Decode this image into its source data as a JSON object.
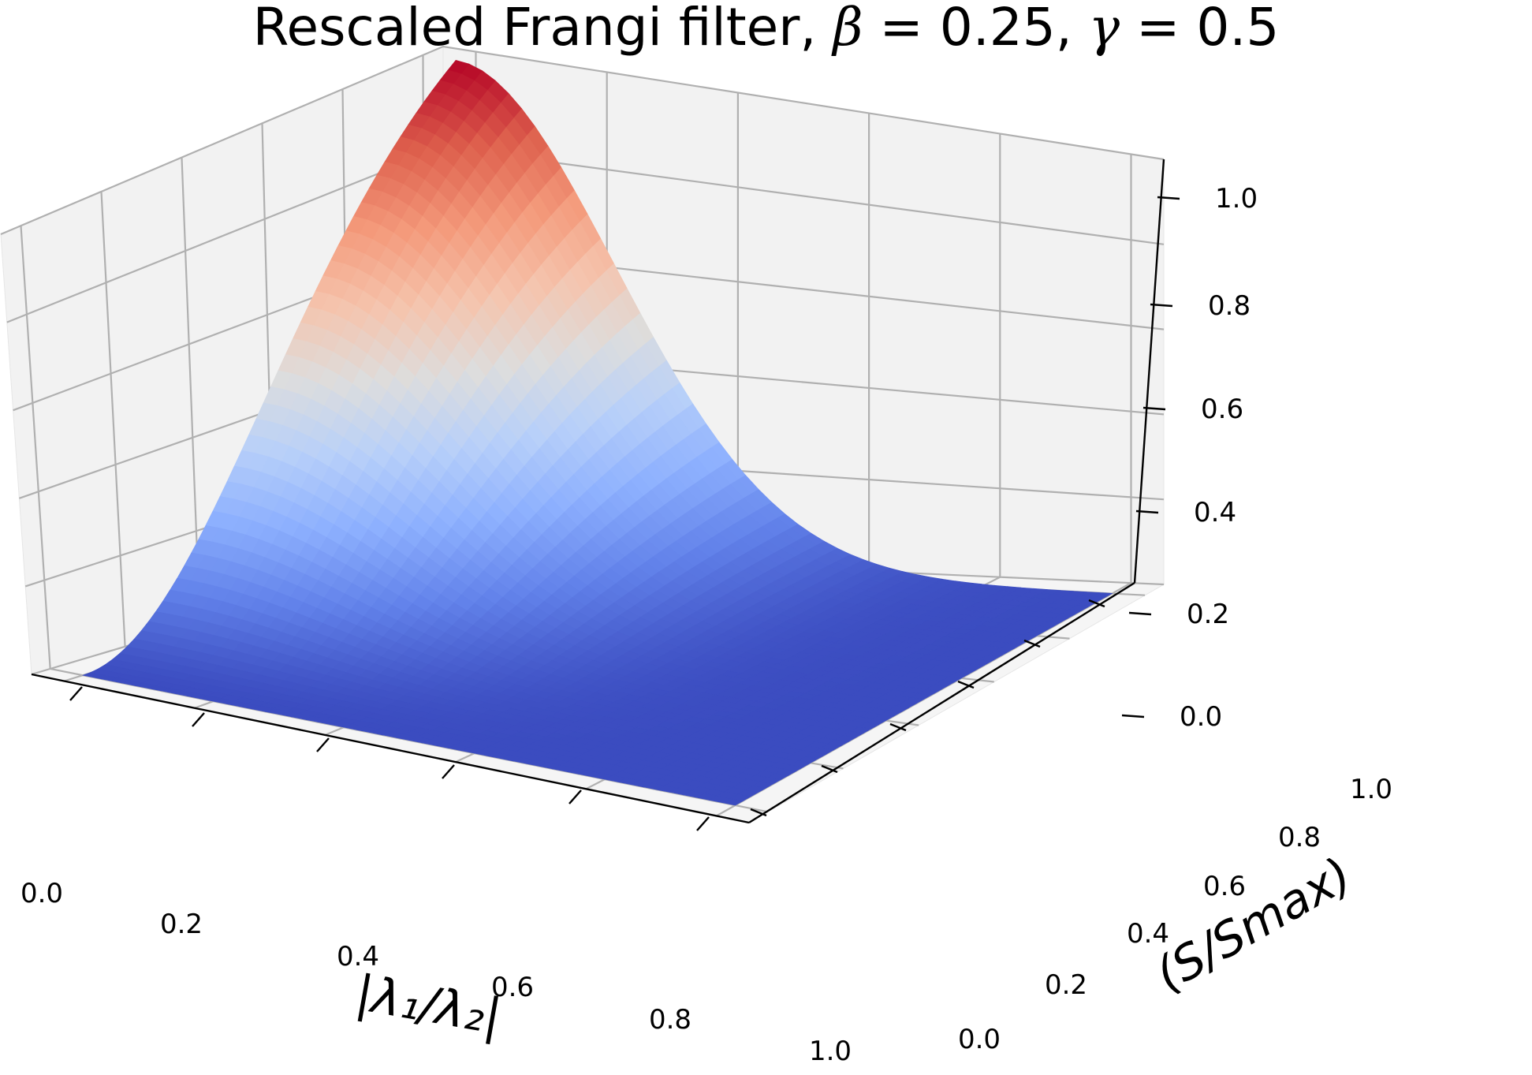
{
  "chart_data": {
    "type": "surface",
    "title": "Rescaled Frangi filter, ",
    "title_beta": "β",
    "title_beta_val": " = 0.25, ",
    "title_gamma": "γ",
    "title_gamma_val": " = 0.5",
    "xlabel": "|λ₁/λ₂|",
    "ylabel": "(S/Smax)",
    "zlabel": "",
    "x_ticks": [
      "0.0",
      "0.2",
      "0.4",
      "0.6",
      "0.8",
      "1.0"
    ],
    "y_ticks": [
      "0.0",
      "0.2",
      "0.4",
      "0.6",
      "0.8",
      "1.0"
    ],
    "z_ticks": [
      "0.0",
      "0.2",
      "0.4",
      "0.6",
      "0.8",
      "1.0"
    ],
    "xlim": [
      0,
      1
    ],
    "ylim": [
      0,
      1
    ],
    "zlim": [
      0,
      1
    ],
    "beta": 0.25,
    "gamma": 0.5,
    "colormap": "coolwarm",
    "grid": true,
    "surface_samples": {
      "x": [
        0.0,
        0.2,
        0.4,
        0.6,
        0.8,
        1.0
      ],
      "y_at_max": 1.0,
      "z_along_x_at_y_max": [
        1.0,
        0.73,
        0.28,
        0.056,
        0.006,
        0.0
      ]
    }
  }
}
